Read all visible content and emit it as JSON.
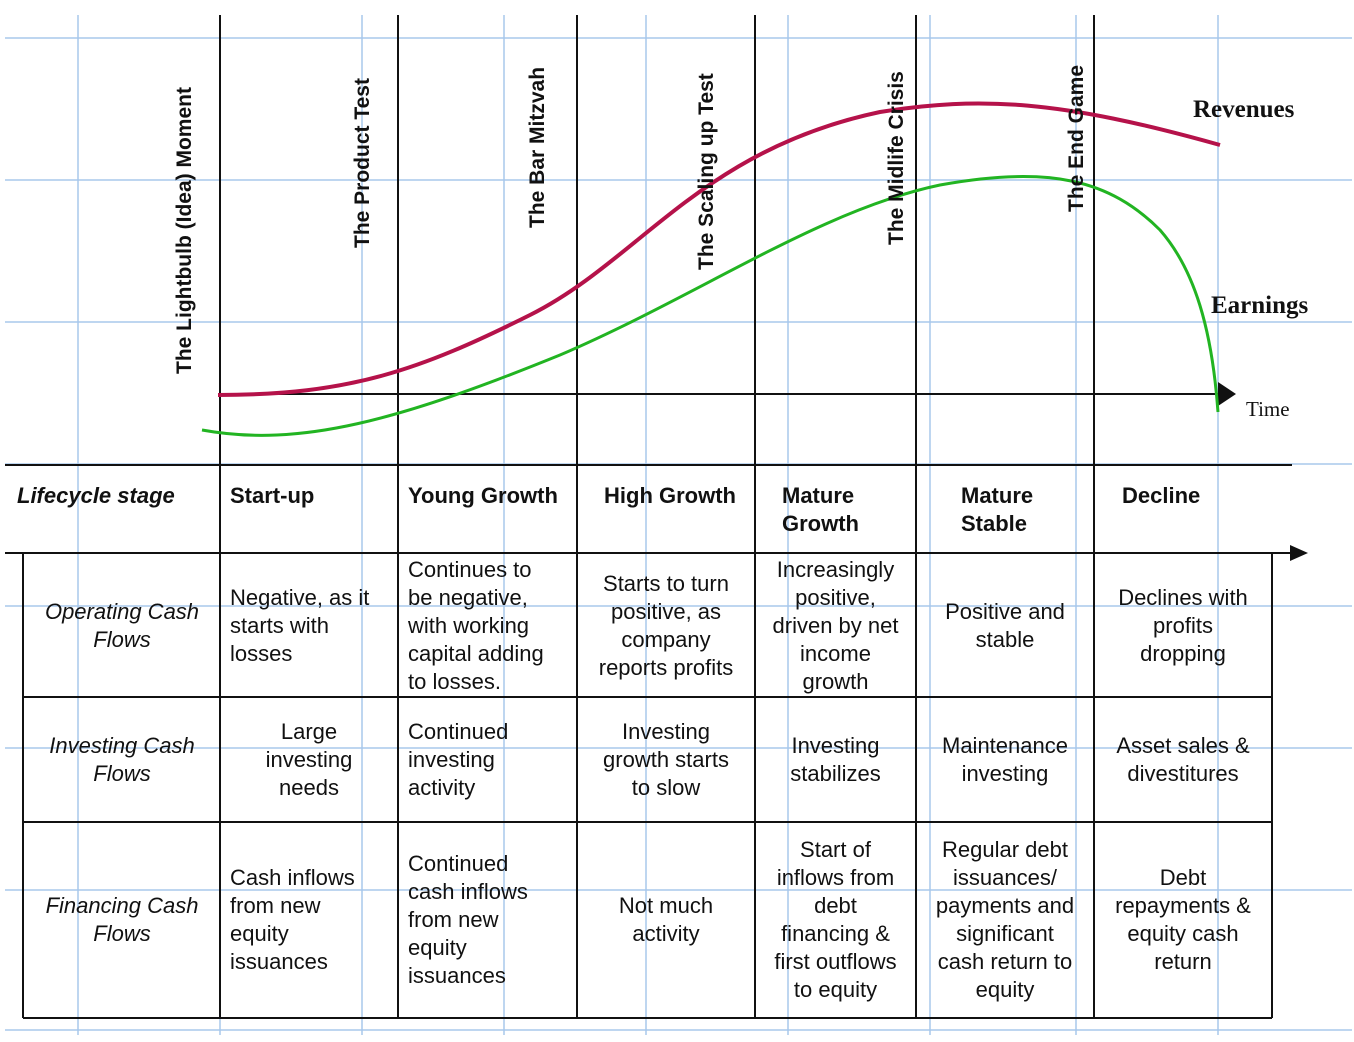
{
  "colors": {
    "revenues": "#b5124a",
    "earnings": "#22b422",
    "grid": "#a8c8ec",
    "ink": "#111111"
  },
  "chart_data": {
    "type": "line",
    "xlabel": "Time",
    "series": [
      {
        "name": "Revenues",
        "color": "#b5124a"
      },
      {
        "name": "Earnings",
        "color": "#22b422"
      }
    ]
  },
  "stage_markers": [
    "The Lightbulb (Idea) Moment",
    "The Product Test",
    "The Bar Mitzvah",
    "The Scaling up Test",
    "The Midlife Crisis",
    "The End Game"
  ],
  "series_labels": {
    "revenues": "Revenues",
    "earnings": "Earnings",
    "time": "Time"
  },
  "table": {
    "corner": "Lifecycle stage",
    "stages": [
      "Start-up",
      "Young Growth",
      "High Growth",
      "Mature\nGrowth",
      "Mature\nStable",
      "Decline"
    ],
    "rows": [
      {
        "label": "Operating Cash\nFlows",
        "cells": [
          "Negative, as it\nstarts with\nlosses",
          "Continues to\nbe negative,\nwith working\ncapital adding\nto losses.",
          "Starts to turn\npositive, as\ncompany\nreports profits",
          "Increasingly\npositive,\ndriven by net\nincome\ngrowth",
          "Positive and\nstable",
          "Declines with\nprofits\ndropping"
        ]
      },
      {
        "label": "Investing Cash\nFlows",
        "cells": [
          "Large\ninvesting\nneeds",
          "Continued\ninvesting\nactivity",
          "Investing\ngrowth starts\nto slow",
          "Investing\nstabilizes",
          "Maintenance\ninvesting",
          "Asset sales &\ndivestitures"
        ]
      },
      {
        "label": "Financing Cash\nFlows",
        "cells": [
          "Cash inflows\nfrom new\nequity\nissuances",
          "Continued\ncash inflows\nfrom new\nequity\nissuances",
          "Not much\nactivity",
          "Start of\ninflows from\ndebt\nfinancing &\nfirst outflows\nto equity",
          "Regular debt\nissuances/\npayments and\nsignificant\ncash return to\nequity",
          "Debt\nrepayments &\nequity cash\nreturn"
        ]
      }
    ]
  }
}
